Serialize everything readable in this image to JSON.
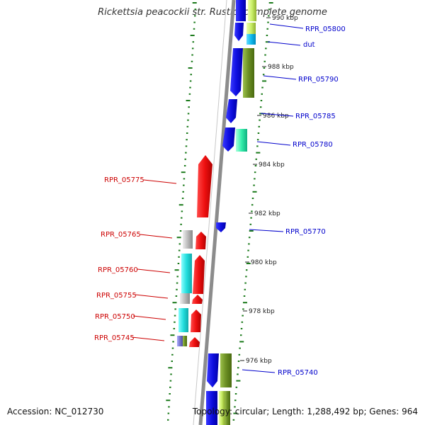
{
  "title": "Rickettsia peacockii str. Rustic, complete genome",
  "accession": "Accession: NC_012730",
  "summary": "Topology: circular; Length: 1,288,492 bp; Genes: 964",
  "kbp_labels": [
    "976 kbp",
    "978 kbp",
    "980 kbp",
    "982 kbp",
    "984 kbp",
    "986 kbp",
    "988 kbp",
    "990 kbp"
  ],
  "forward_genes": [
    "RPR_05800",
    "dut",
    "RPR_05790",
    "RPR_05785",
    "RPR_05780",
    "RPR_05770",
    "RPR_05740"
  ],
  "reverse_genes": [
    "RPR_05775",
    "RPR_05765",
    "RPR_05760",
    "RPR_05755",
    "RPR_05750",
    "RPR_05745"
  ],
  "colors": {
    "forward_label": "#0000cc",
    "reverse_label": "#cc0000",
    "cds_forward": "#1010ee",
    "cds_reverse": "#ee1111",
    "cog_cyan": "#22dddd",
    "cog_olive": "#6b8e23",
    "cog_gray": "#bbbbbb",
    "backbone": "#8c8c8c",
    "gc_ticks": "#1a7a1a"
  }
}
